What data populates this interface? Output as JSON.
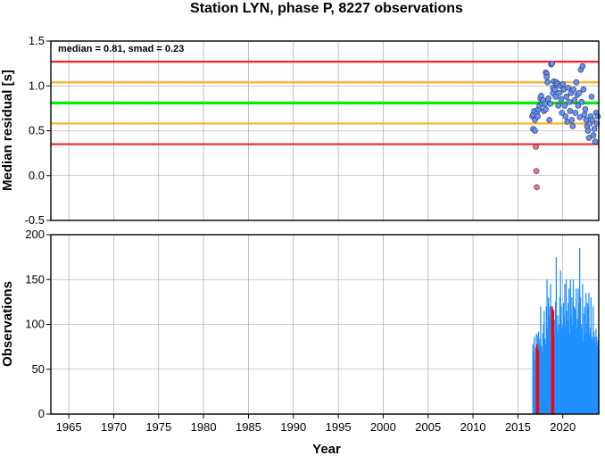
{
  "title": "Station LYN, phase P, 8227 observations",
  "colors": {
    "thr_red": "#ff2020",
    "thr_orange": "#ffb020",
    "median_green": "#00ee00",
    "pt_normal": "#6495ed",
    "pt_outlier": "#ff7070",
    "bar_normal": "#1e90ff",
    "bar_outlier": "#ff0000"
  },
  "chart_data": [
    {
      "type": "scatter",
      "ylabel": "Median residual [s]",
      "annotation": "median = 0.81, smad = 0.23",
      "xlim": [
        1963,
        2024
      ],
      "ylim": [
        -0.5,
        1.5
      ],
      "x_ticks": [
        1965,
        1970,
        1975,
        1980,
        1985,
        1990,
        1995,
        2000,
        2005,
        2010,
        2015,
        2020
      ],
      "y_ticks": [
        -0.5,
        0.0,
        0.5,
        1.0,
        1.5
      ],
      "y_tick_labels": [
        "-0.5",
        "0.0",
        "0.5",
        "1.0",
        "1.5"
      ],
      "grid": true,
      "hlines": [
        {
          "y": 1.27,
          "color": "red"
        },
        {
          "y": 1.04,
          "color": "orange"
        },
        {
          "y": 0.81,
          "color": "green"
        },
        {
          "y": 0.58,
          "color": "orange"
        },
        {
          "y": 0.35,
          "color": "red"
        }
      ],
      "points": [
        [
          2016.6,
          0.66
        ],
        [
          2016.7,
          0.68
        ],
        [
          2016.8,
          0.72
        ],
        [
          2016.7,
          0.52
        ],
        [
          2016.9,
          0.5
        ],
        [
          2016.9,
          0.62
        ],
        [
          2017.0,
          0.32
        ],
        [
          2017.05,
          0.05
        ],
        [
          2017.1,
          -0.13
        ],
        [
          2017.1,
          0.7
        ],
        [
          2017.2,
          0.66
        ],
        [
          2017.3,
          0.74
        ],
        [
          2017.4,
          0.78
        ],
        [
          2017.5,
          0.86
        ],
        [
          2017.6,
          0.89
        ],
        [
          2017.7,
          0.8
        ],
        [
          2017.8,
          0.84
        ],
        [
          2017.9,
          0.72
        ],
        [
          2018.0,
          0.8
        ],
        [
          2018.1,
          0.74
        ],
        [
          2018.1,
          1.15
        ],
        [
          2018.2,
          1.13
        ],
        [
          2018.2,
          1.1
        ],
        [
          2018.3,
          1.04
        ],
        [
          2018.4,
          0.86
        ],
        [
          2018.5,
          0.62
        ],
        [
          2018.6,
          0.8
        ],
        [
          2018.7,
          1.24
        ],
        [
          2018.8,
          1.25
        ],
        [
          2018.9,
          0.92
        ],
        [
          2018.9,
          0.98
        ],
        [
          2019.0,
          1.05
        ],
        [
          2019.1,
          0.96
        ],
        [
          2019.2,
          0.88
        ],
        [
          2019.3,
          1.04
        ],
        [
          2019.4,
          1.02
        ],
        [
          2019.5,
          0.78
        ],
        [
          2019.6,
          0.92
        ],
        [
          2019.7,
          1.0
        ],
        [
          2019.8,
          0.85
        ],
        [
          2019.9,
          0.7
        ],
        [
          2020.0,
          1.02
        ],
        [
          2020.1,
          0.96
        ],
        [
          2020.2,
          0.78
        ],
        [
          2020.3,
          0.66
        ],
        [
          2020.4,
          0.88
        ],
        [
          2020.5,
          0.6
        ],
        [
          2020.6,
          0.98
        ],
        [
          2020.7,
          0.82
        ],
        [
          2020.8,
          0.72
        ],
        [
          2020.9,
          0.92
        ],
        [
          2021.0,
          0.62
        ],
        [
          2021.1,
          0.55
        ],
        [
          2021.2,
          0.96
        ],
        [
          2021.3,
          0.84
        ],
        [
          2021.4,
          0.7
        ],
        [
          2021.5,
          1.04
        ],
        [
          2021.6,
          0.9
        ],
        [
          2021.7,
          0.78
        ],
        [
          2021.8,
          0.92
        ],
        [
          2021.9,
          0.65
        ],
        [
          2022.0,
          1.18
        ],
        [
          2022.1,
          0.82
        ],
        [
          2022.2,
          1.22
        ],
        [
          2022.3,
          0.96
        ],
        [
          2022.4,
          0.68
        ],
        [
          2022.5,
          0.74
        ],
        [
          2022.6,
          0.62
        ],
        [
          2022.7,
          0.55
        ],
        [
          2022.8,
          0.5
        ],
        [
          2022.9,
          0.42
        ],
        [
          2023.0,
          0.58
        ],
        [
          2023.1,
          0.66
        ],
        [
          2023.2,
          0.88
        ],
        [
          2023.3,
          0.62
        ],
        [
          2023.4,
          0.45
        ],
        [
          2023.5,
          0.52
        ],
        [
          2023.6,
          0.38
        ],
        [
          2023.7,
          0.7
        ],
        [
          2023.8,
          0.58
        ],
        [
          2023.9,
          0.66
        ]
      ]
    },
    {
      "type": "bar",
      "ylabel": "Observations",
      "xlabel": "Year",
      "xlim": [
        1963,
        2024
      ],
      "ylim": [
        0,
        200
      ],
      "x_ticks": [
        1965,
        1970,
        1975,
        1980,
        1985,
        1990,
        1995,
        2000,
        2005,
        2010,
        2015,
        2020
      ],
      "y_ticks": [
        0,
        50,
        100,
        150,
        200
      ],
      "grid": true,
      "bars_start": 2016.6,
      "bar_width_years": 0.05,
      "values": [
        78,
        70,
        86,
        60,
        74,
        90,
        66,
        88,
        92,
        80,
        84,
        120,
        76,
        70,
        90,
        100,
        115,
        84,
        78,
        120,
        150,
        96,
        130,
        110,
        120,
        145,
        104,
        92,
        118,
        96,
        88,
        105,
        125,
        175,
        98,
        110,
        92,
        100,
        130,
        160,
        120,
        95,
        100,
        124,
        110,
        145,
        98,
        150,
        115,
        104,
        124,
        140,
        90,
        150,
        110,
        130,
        98,
        150,
        120,
        118,
        116,
        140,
        96,
        106,
        140,
        124,
        185,
        130,
        100,
        96,
        145,
        80,
        112,
        120,
        90,
        135,
        100,
        124,
        120,
        135,
        88,
        96,
        130,
        86,
        82,
        120,
        92,
        86,
        80,
        95,
        86,
        76,
        82,
        72
      ],
      "red_bars": [
        {
          "x": 2017.0,
          "value": 78
        },
        {
          "x": 2017.15,
          "value": 72
        },
        {
          "x": 2018.7,
          "value": 120
        },
        {
          "x": 2018.85,
          "value": 116
        }
      ]
    }
  ]
}
